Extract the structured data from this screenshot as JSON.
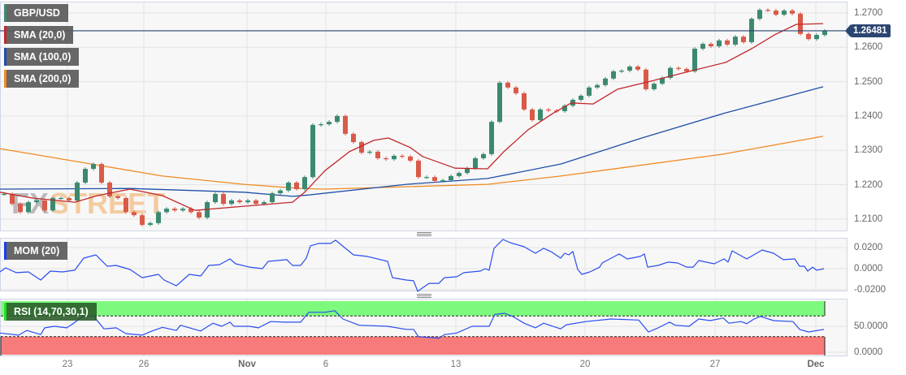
{
  "legends": {
    "pair": "GBP/USD",
    "sma20": "SMA (20,0)",
    "sma100": "SMA (100,0)",
    "sma200": "SMA (200,0)",
    "mom": "MOM (20)",
    "rsi": "RSI (14,70,30,1)"
  },
  "watermark": {
    "fx": "FX",
    "street": "STREET"
  },
  "current_price": "1.26481",
  "colors": {
    "up": "#3b8a70",
    "down": "#d95a48",
    "sma20": "#c0282b",
    "sma100": "#1f4fa8",
    "sma200": "#f08a24",
    "indicator": "#2a4df0",
    "price_line": "#2b4570",
    "overbought": "#7dfa7d",
    "oversold": "#f87b7b"
  },
  "x_ticks": [
    {
      "label": "23",
      "bold": false
    },
    {
      "label": "26",
      "bold": false
    },
    {
      "label": "Nov",
      "bold": true
    },
    {
      "label": "6",
      "bold": false
    },
    {
      "label": "13",
      "bold": false
    },
    {
      "label": "20",
      "bold": false
    },
    {
      "label": "27",
      "bold": false
    },
    {
      "label": "Dec",
      "bold": true
    }
  ],
  "chart_data": [
    {
      "type": "candlestick",
      "series_name": "GBP/USD",
      "y_ticks": [
        "1.2700",
        "1.2600",
        "1.2500",
        "1.2400",
        "1.2300",
        "1.2200",
        "1.2100"
      ],
      "ylim": [
        1.2058,
        1.2745
      ],
      "grid": true,
      "closes": [
        1.2173,
        1.2144,
        1.212,
        1.2149,
        1.2154,
        1.2125,
        1.2161,
        1.2161,
        1.2154,
        1.2206,
        1.2246,
        1.226,
        1.2206,
        1.2166,
        1.2161,
        1.212,
        1.2111,
        1.2083,
        1.2088,
        1.212,
        1.213,
        1.2125,
        1.213,
        1.212,
        1.2104,
        1.2149,
        1.2173,
        1.2144,
        1.2154,
        1.2149,
        1.2154,
        1.2144,
        1.2149,
        1.2175,
        1.2183,
        1.2206,
        1.2187,
        1.2222,
        1.2374,
        1.2376,
        1.2383,
        1.24,
        1.2348,
        1.2324,
        1.2293,
        1.2296,
        1.2277,
        1.2274,
        1.2284,
        1.2282,
        1.227,
        1.2222,
        1.2222,
        1.2211,
        1.2213,
        1.2225,
        1.2234,
        1.2248,
        1.2277,
        1.2289,
        1.2383,
        1.2497,
        1.2483,
        1.2466,
        1.2419,
        1.2388,
        1.2419,
        1.2416,
        1.2414,
        1.243,
        1.2447,
        1.2459,
        1.2483,
        1.249,
        1.2509,
        1.253,
        1.2532,
        1.2544,
        1.2535,
        1.2478,
        1.2494,
        1.2511,
        1.254,
        1.2537,
        1.253,
        1.2596,
        1.261,
        1.2603,
        1.262,
        1.2608,
        1.2631,
        1.2615,
        1.2683,
        1.2709,
        1.2707,
        1.2695,
        1.2707,
        1.2698,
        1.2639,
        1.2624,
        1.2636,
        1.26481
      ],
      "sma20": [
        1.2178,
        1.2161,
        1.2149,
        1.2168,
        1.2187,
        1.2168,
        1.2125,
        1.2137,
        1.2149,
        1.2178,
        1.2241,
        1.2296,
        1.2329,
        1.2336,
        1.2308,
        1.2282,
        1.2248,
        1.2246,
        1.2296,
        1.236,
        1.2407,
        1.2438,
        1.2435,
        1.2478,
        1.2501,
        1.2525,
        1.2556,
        1.2596,
        1.2636,
        1.2667,
        1.2669
      ],
      "sma100": [
        1.2187,
        1.2189,
        1.2178,
        1.2166,
        1.217,
        1.2201,
        1.2218,
        1.226,
        1.2336,
        1.2407,
        1.2485
      ],
      "sma200": [
        1.2305,
        1.2265,
        1.2225,
        1.2201,
        1.2189,
        1.2187,
        1.2201,
        1.2225,
        1.2289,
        1.2341
      ],
      "last_price": 1.26481
    },
    {
      "type": "line",
      "series_name": "MOM (20)",
      "y_ticks": [
        "0.0200",
        "0.0000",
        "-0.0200"
      ],
      "ylim": [
        -0.021,
        0.029
      ],
      "values": [
        -0.0031,
        0.0008,
        -0.0038,
        -0.0031,
        -0.0108,
        -0.0023,
        -0.0031,
        -0.0015,
        0.01,
        0.0131,
        0.0023,
        0.0031,
        -0.0008,
        -0.0085,
        -0.0054,
        -0.0108,
        -0.0162,
        -0.0054,
        -0.0069,
        0.0031,
        0.0038,
        0.0092,
        0.0046,
        0.0015,
        0.0,
        0.0069,
        0.0085,
        0.0031,
        0.0031,
        0.01,
        0.0216,
        0.0239,
        0.0239,
        0.027,
        0.0131,
        0.0116,
        0.0069,
        -0.0085,
        -0.0108,
        -0.0115,
        -0.0215,
        -0.0139,
        -0.0139,
        -0.0085,
        -0.0077,
        -0.0038,
        -0.0023,
        0.0,
        -0.0015,
        0.0193,
        0.0277,
        0.0246,
        0.0208,
        0.0146,
        0.0193,
        0.0162,
        0.01,
        0.0146,
        0.0131,
        0.0162,
        -0.0008,
        -0.0054,
        -0.0031,
        0.0015,
        0.0054,
        0.0139,
        0.0092,
        0.0116,
        0.0139,
        0.0015,
        0.0031,
        0.0062,
        0.0054,
        0.0015,
        0.0015,
        0.0077,
        0.0046,
        0.0092,
        0.0062,
        0.0169,
        0.0092,
        0.0177,
        0.0146,
        0.0085,
        0.0092,
        0.0023,
        0.0023,
        -0.0023,
        0.0015,
        -0.0015,
        0.0
      ]
    },
    {
      "type": "line",
      "series_name": "RSI (14,70,30,1)",
      "y_ticks": [
        "50.0000",
        "0.0000"
      ],
      "ylim": [
        0,
        100
      ],
      "overbought": 70,
      "oversold": 30,
      "values": [
        37,
        33,
        42,
        34,
        47,
        50,
        47,
        53,
        67,
        70,
        45,
        47,
        36,
        33,
        41,
        48,
        42,
        52,
        41,
        56,
        50,
        58,
        50,
        50,
        47,
        59,
        58,
        58,
        77,
        77,
        80,
        64,
        52,
        50,
        44,
        44,
        30,
        27,
        34,
        37,
        50,
        50,
        73,
        75,
        69,
        56,
        47,
        56,
        45,
        53,
        59,
        64,
        62,
        39,
        47,
        58,
        52,
        50,
        64,
        61,
        66,
        56,
        59,
        55,
        64,
        69,
        61,
        59,
        44,
        39,
        44
      ]
    }
  ]
}
